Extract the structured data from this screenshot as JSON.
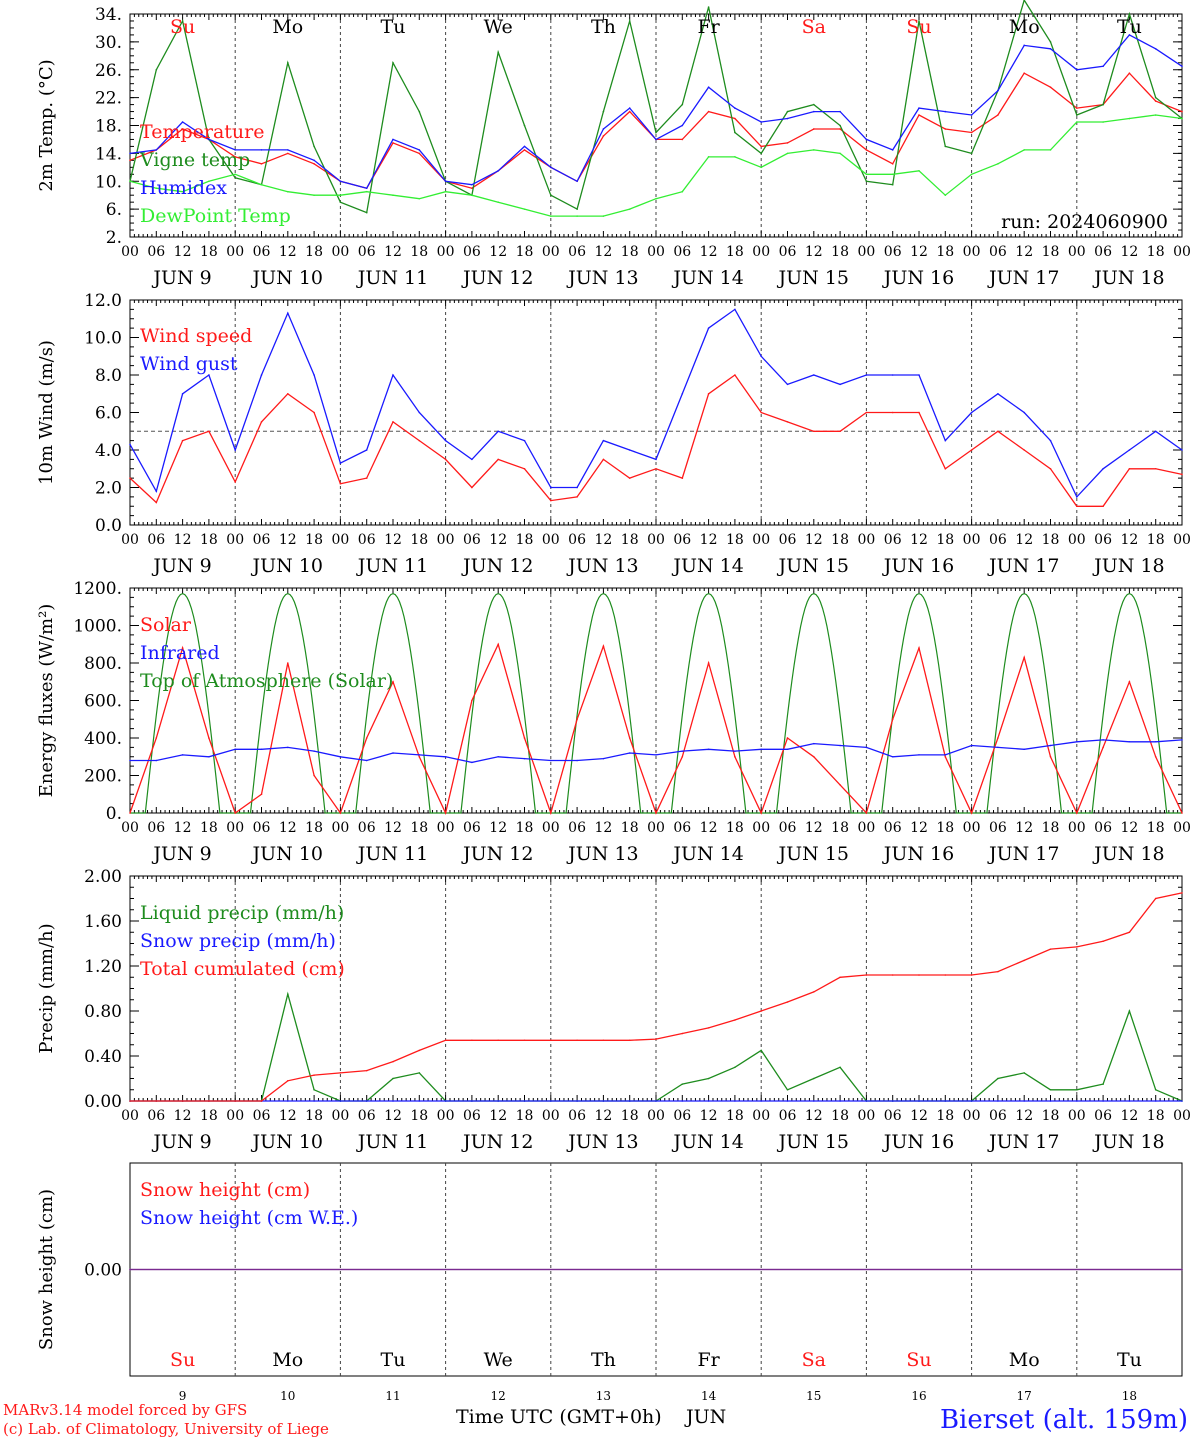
{
  "colors": {
    "red": "#ff1a1a",
    "green": "#1e8c1e",
    "blue": "#1a1aff",
    "lightgreen": "#33ee33",
    "purple": "#7a2a90",
    "black": "#000000"
  },
  "days": [
    "Su",
    "Mo",
    "Tu",
    "We",
    "Th",
    "Fr",
    "Sa",
    "Su",
    "Mo",
    "Tu"
  ],
  "day_colors": [
    "red",
    "black",
    "black",
    "black",
    "black",
    "black",
    "red",
    "red",
    "black",
    "black"
  ],
  "date_labels": [
    "JUN  9",
    "JUN 10",
    "JUN 11",
    "JUN 12",
    "JUN 13",
    "JUN 14",
    "JUN 15",
    "JUN 16",
    "JUN 17",
    "JUN 18"
  ],
  "hour_labels": [
    "00",
    "06",
    "12",
    "18"
  ],
  "final_hour_label": "00",
  "bottom_day_numbers": [
    "9",
    "10",
    "11",
    "12",
    "13",
    "14",
    "15",
    "16",
    "17",
    "18"
  ],
  "footer": {
    "model_line": "MARv3.14 model forced by GFS",
    "copyright_line": "(c) Lab. of Climatology, University of Liege",
    "axis_title": "Time UTC (GMT+0h)",
    "month": "JUN",
    "station": "Bierset (alt. 159m)"
  },
  "run_label": "run: 2024060900",
  "chart_data": [
    {
      "type": "line",
      "ylabel": "2m Temp. (°C)",
      "ylim": [
        2,
        34
      ],
      "yticks": [
        2,
        6,
        10,
        14,
        18,
        22,
        26,
        30,
        34
      ],
      "ytick_labels": [
        "2.",
        "6.",
        "10.",
        "14.",
        "18.",
        "22.",
        "26.",
        "30.",
        "34."
      ],
      "x_unit": "hours since JUN 9 00 UTC",
      "x": [
        0,
        6,
        12,
        18,
        24,
        30,
        36,
        42,
        48,
        54,
        60,
        66,
        72,
        78,
        84,
        90,
        96,
        102,
        108,
        114,
        120,
        126,
        132,
        138,
        144,
        150,
        156,
        162,
        168,
        174,
        180,
        186,
        192,
        198,
        204,
        210,
        216,
        222,
        228,
        234,
        240
      ],
      "series": [
        {
          "name": "Temperature",
          "color": "red",
          "values": [
            13,
            14.5,
            17.5,
            16,
            13.5,
            12.5,
            14,
            12.5,
            10,
            9,
            15.5,
            14,
            10,
            9,
            11.5,
            14.5,
            12,
            10,
            16.5,
            20,
            16,
            16,
            20,
            19,
            15,
            15.5,
            17.5,
            17.5,
            14.5,
            12.5,
            19.5,
            17.5,
            17,
            19.5,
            25.5,
            23.5,
            20.5,
            21,
            25.5,
            21.5,
            20
          ]
        },
        {
          "name": "Vigne temp",
          "color": "green",
          "values": [
            10,
            26,
            33,
            16,
            10.5,
            9.5,
            27,
            15,
            7,
            5.5,
            27,
            20,
            10,
            8,
            28.5,
            18,
            8,
            6,
            20,
            33,
            17,
            21,
            35,
            17,
            14,
            20,
            21,
            18,
            10,
            9.5,
            33,
            15,
            14,
            23,
            36,
            30,
            19.5,
            21,
            34,
            22,
            19
          ]
        },
        {
          "name": "Humidex",
          "color": "blue",
          "values": [
            14,
            14.5,
            18.5,
            16,
            14.5,
            14.5,
            14.5,
            13,
            10,
            9,
            16,
            14.5,
            10,
            9.5,
            11.5,
            15,
            12,
            10,
            17.5,
            20.5,
            16,
            18,
            23.5,
            20.5,
            18.5,
            19,
            20,
            20,
            16,
            14.5,
            20.5,
            20,
            19.5,
            23,
            29.5,
            29,
            26,
            26.5,
            31,
            29,
            26.5
          ]
        },
        {
          "name": "DewPoint Temp",
          "color": "lightgreen",
          "values": [
            10,
            9,
            8.5,
            10,
            11,
            9.5,
            8.5,
            8,
            8,
            8.5,
            8,
            7.5,
            8.5,
            8,
            7,
            6,
            5,
            5,
            5,
            6,
            7.5,
            8.5,
            13.5,
            13.5,
            12,
            14,
            14.5,
            14,
            11,
            11,
            11.5,
            8,
            11,
            12.5,
            14.5,
            14.5,
            18.5,
            18.5,
            19,
            19.5,
            19
          ]
        }
      ]
    },
    {
      "type": "line",
      "ylabel": "10m Wind (m/s)",
      "ylim": [
        0,
        12
      ],
      "yticks": [
        0,
        2,
        4,
        6,
        8,
        10,
        12
      ],
      "ytick_labels": [
        "0.0",
        "2.0",
        "4.0",
        "6.0",
        "8.0",
        "10.0",
        "12.0"
      ],
      "reference_line": 5,
      "x": [
        0,
        6,
        12,
        18,
        24,
        30,
        36,
        42,
        48,
        54,
        60,
        66,
        72,
        78,
        84,
        90,
        96,
        102,
        108,
        114,
        120,
        126,
        132,
        138,
        144,
        150,
        156,
        162,
        168,
        174,
        180,
        186,
        192,
        198,
        204,
        210,
        216,
        222,
        228,
        234,
        240
      ],
      "series": [
        {
          "name": "Wind speed",
          "color": "red",
          "values": [
            2.5,
            1.2,
            4.5,
            5,
            2.3,
            5.5,
            7,
            6,
            2.2,
            2.5,
            5.5,
            4.5,
            3.5,
            2,
            3.5,
            3,
            1.3,
            1.5,
            3.5,
            2.5,
            3,
            2.5,
            7,
            8,
            6,
            5.5,
            5,
            5,
            6,
            6,
            6,
            3,
            4,
            5,
            4,
            3,
            1,
            1,
            3,
            3,
            2.7
          ]
        },
        {
          "name": "Wind gust",
          "color": "blue",
          "values": [
            4.3,
            1.8,
            7,
            8,
            4,
            8,
            11.3,
            8,
            3.3,
            4,
            8,
            6,
            4.5,
            3.5,
            5,
            4.5,
            2,
            2,
            4.5,
            4,
            3.5,
            7,
            10.5,
            11.5,
            9,
            7.5,
            8,
            7.5,
            8,
            8,
            8,
            4.5,
            6,
            7,
            6,
            4.5,
            1.5,
            3,
            4,
            5,
            4
          ]
        }
      ]
    },
    {
      "type": "line",
      "ylabel": "Energy fluxes (W/m²)",
      "ylim": [
        0,
        1200
      ],
      "yticks": [
        0,
        200,
        400,
        600,
        800,
        1000,
        1200
      ],
      "ytick_labels": [
        "0.",
        "200.",
        "400.",
        "600.",
        "800.",
        "1000.",
        "1200."
      ],
      "x": [
        0,
        6,
        12,
        18,
        24,
        30,
        36,
        42,
        48,
        54,
        60,
        66,
        72,
        78,
        84,
        90,
        96,
        102,
        108,
        114,
        120,
        126,
        132,
        138,
        144,
        150,
        156,
        162,
        168,
        174,
        180,
        186,
        192,
        198,
        204,
        210,
        216,
        222,
        228,
        234,
        240
      ],
      "series": [
        {
          "name": "Solar",
          "color": "red",
          "values": [
            0,
            400,
            880,
            400,
            0,
            100,
            800,
            200,
            0,
            400,
            700,
            300,
            0,
            600,
            900,
            400,
            0,
            500,
            890,
            400,
            0,
            300,
            800,
            300,
            0,
            400,
            300,
            150,
            0,
            500,
            880,
            300,
            0,
            400,
            830,
            300,
            0,
            350,
            700,
            300,
            0
          ]
        },
        {
          "name": "Infrared",
          "color": "blue",
          "values": [
            280,
            280,
            310,
            300,
            340,
            340,
            350,
            330,
            300,
            280,
            320,
            310,
            300,
            270,
            300,
            290,
            280,
            280,
            290,
            320,
            310,
            330,
            340,
            330,
            340,
            340,
            370,
            360,
            350,
            300,
            310,
            310,
            360,
            350,
            340,
            360,
            380,
            390,
            380,
            380,
            390
          ]
        }
      ]
    },
    {
      "type": "line",
      "ylabel": "Precip (mm/h)",
      "ylim": [
        0,
        2
      ],
      "yticks": [
        0,
        0.4,
        0.8,
        1.2,
        1.6,
        2.0
      ],
      "ytick_labels": [
        "0.00",
        "0.40",
        "0.80",
        "1.20",
        "1.60",
        "2.00"
      ],
      "x": [
        0,
        6,
        12,
        18,
        24,
        30,
        36,
        42,
        48,
        54,
        60,
        66,
        72,
        78,
        84,
        90,
        96,
        102,
        108,
        114,
        120,
        126,
        132,
        138,
        144,
        150,
        156,
        162,
        168,
        174,
        180,
        186,
        192,
        198,
        204,
        210,
        216,
        222,
        228,
        234,
        240
      ],
      "series": [
        {
          "name": "Liquid precip (mm/h)",
          "color": "green",
          "values": [
            0,
            0,
            0,
            0,
            0,
            0,
            0.95,
            0.1,
            0,
            0,
            0.2,
            0.25,
            0,
            0,
            0,
            0,
            0,
            0,
            0,
            0,
            0,
            0.15,
            0.2,
            0.3,
            0.45,
            0.1,
            0.2,
            0.3,
            0,
            0,
            0,
            0,
            0,
            0.2,
            0.25,
            0.1,
            0.1,
            0.15,
            0.8,
            0.1,
            0
          ]
        },
        {
          "name": "Snow precip (mm/h)",
          "color": "blue",
          "values": [
            0,
            0,
            0,
            0,
            0,
            0,
            0,
            0,
            0,
            0,
            0,
            0,
            0,
            0,
            0,
            0,
            0,
            0,
            0,
            0,
            0,
            0,
            0,
            0,
            0,
            0,
            0,
            0,
            0,
            0,
            0,
            0,
            0,
            0,
            0,
            0,
            0,
            0,
            0,
            0,
            0
          ]
        },
        {
          "name": "Total cumulated (cm)",
          "color": "red",
          "values": [
            0,
            0,
            0,
            0,
            0,
            0,
            0.18,
            0.23,
            0.25,
            0.27,
            0.35,
            0.45,
            0.54,
            0.54,
            0.54,
            0.54,
            0.54,
            0.54,
            0.54,
            0.54,
            0.55,
            0.6,
            0.65,
            0.72,
            0.8,
            0.88,
            0.97,
            1.1,
            1.12,
            1.12,
            1.12,
            1.12,
            1.12,
            1.15,
            1.25,
            1.35,
            1.37,
            1.42,
            1.5,
            1.8,
            1.85
          ]
        }
      ]
    },
    {
      "type": "line",
      "ylabel": "Snow height (cm)",
      "ylim": [
        -1,
        1
      ],
      "yticks": [
        0
      ],
      "ytick_labels": [
        "0.00"
      ],
      "x": [
        0,
        240
      ],
      "series": [
        {
          "name": "Snow height (cm)",
          "color": "red",
          "values": [
            0,
            0
          ]
        },
        {
          "name": "Snow height (cm W.E.)",
          "color": "blue",
          "values": [
            0,
            0
          ]
        }
      ]
    }
  ],
  "extra_series": {
    "toa_solar": {
      "name": "Top of Atmosphere (Solar)",
      "color": "green",
      "peak": 1170,
      "sunrise_hour": 3.5,
      "sunset_hour": 20.5
    }
  }
}
